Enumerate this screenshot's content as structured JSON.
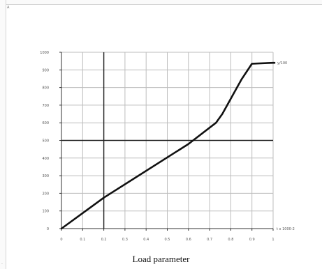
{
  "window": {
    "corner_mark": "A",
    "bottom_mark": "-"
  },
  "chart_data": {
    "type": "line",
    "caption": "Load parameter",
    "x_range": [
      0,
      10
    ],
    "y_range": [
      0,
      1000
    ],
    "x_ticks": [
      {
        "value": 0,
        "label": "0"
      },
      {
        "value": 1,
        "label": "0.1"
      },
      {
        "value": 2,
        "label": "0.2"
      },
      {
        "value": 3,
        "label": "0.3"
      },
      {
        "value": 4,
        "label": "0.4"
      },
      {
        "value": 5,
        "label": "0.5"
      },
      {
        "value": 6,
        "label": "0.6"
      },
      {
        "value": 7,
        "label": "0.7"
      },
      {
        "value": 8,
        "label": "0.8"
      },
      {
        "value": 9,
        "label": "0.9"
      },
      {
        "value": 10,
        "label": "1"
      }
    ],
    "y_ticks": [
      {
        "value": 0,
        "label": "0"
      },
      {
        "value": 100,
        "label": "100"
      },
      {
        "value": 200,
        "label": "200"
      },
      {
        "value": 300,
        "label": "300"
      },
      {
        "value": 400,
        "label": "400"
      },
      {
        "value": 500,
        "label": "500"
      },
      {
        "value": 600,
        "label": "600"
      },
      {
        "value": 700,
        "label": "700"
      },
      {
        "value": 800,
        "label": "800"
      },
      {
        "value": 900,
        "label": "900"
      },
      {
        "value": 1000,
        "label": "1000"
      }
    ],
    "highlight_x": 2,
    "highlight_y": 500,
    "series": [
      {
        "x": [
          0,
          2,
          6,
          7.3,
          7.6,
          8.5,
          9,
          10
        ],
        "y": [
          0,
          175,
          480,
          600,
          650,
          845,
          935,
          940
        ]
      }
    ],
    "x_end_label": "t x 1000-2",
    "y_end_label": "y/100",
    "line_color": "#111111",
    "grid_color": "#bdbdbd",
    "axis_color": "#333333"
  }
}
